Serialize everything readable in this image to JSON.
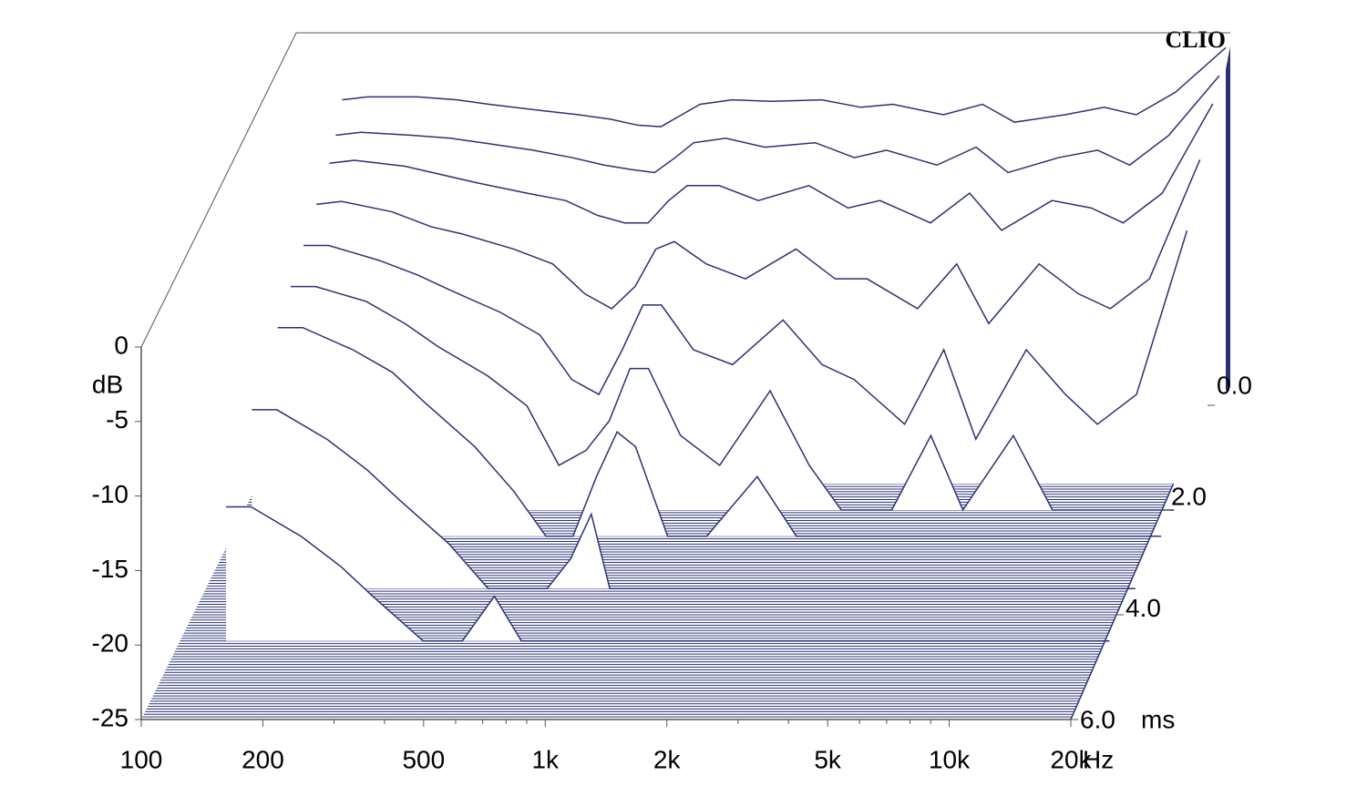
{
  "chart_data": {
    "type": "waterfall",
    "brand": "CLIO",
    "x_unit": "Hz",
    "y_label": "dB",
    "z_unit": "ms",
    "color": "#2b3273",
    "xlim": [
      100,
      20000
    ],
    "xticks": [
      {
        "value": 100,
        "label": "100"
      },
      {
        "value": 200,
        "label": "200"
      },
      {
        "value": 500,
        "label": "500"
      },
      {
        "value": 1000,
        "label": "1k"
      },
      {
        "value": 2000,
        "label": "2k"
      },
      {
        "value": 5000,
        "label": "5k"
      },
      {
        "value": 10000,
        "label": "10k"
      },
      {
        "value": 20000,
        "label": "20k"
      }
    ],
    "xminorticks": [
      300,
      400,
      600,
      700,
      800,
      900,
      3000,
      4000,
      6000,
      7000,
      8000,
      9000
    ],
    "log_x": true,
    "ylim": [
      -25,
      0
    ],
    "yticks": [
      0,
      -5,
      -10,
      -15,
      -20,
      -25
    ],
    "zlim": [
      6,
      0
    ],
    "zticks": [
      {
        "value": 0,
        "label": "0.0"
      },
      {
        "value": 2,
        "label": "2.0"
      },
      {
        "value": 4,
        "label": "4.0"
      },
      {
        "value": 6,
        "label": "6.0"
      }
    ],
    "x": [
      130,
      150,
      200,
      250,
      300,
      400,
      500,
      600,
      700,
      800,
      900,
      1000,
      1200,
      1500,
      2000,
      2500,
      3000,
      4000,
      5000,
      6000,
      8000,
      10000,
      12000,
      15000,
      20000
    ],
    "slices": [
      {
        "t": 0,
        "values": [
          -4.5,
          -4.3,
          -4.3,
          -4.5,
          -4.8,
          -5.2,
          -5.5,
          -5.8,
          -6.2,
          -6.3,
          -5.5,
          -4.8,
          -4.5,
          -4.6,
          -4.5,
          -5,
          -4.8,
          -5.5,
          -4.8,
          -6,
          -5.5,
          -5,
          -5.5,
          -4,
          -1
        ]
      },
      {
        "t": 0.25,
        "values": [
          -6,
          -5.8,
          -6,
          -6.2,
          -6.5,
          -7,
          -7.5,
          -8,
          -8.3,
          -8.5,
          -7.5,
          -6.5,
          -6.2,
          -6.8,
          -6.5,
          -7.5,
          -7,
          -8,
          -6.8,
          -8.5,
          -7.5,
          -7,
          -8,
          -6,
          -2
        ]
      },
      {
        "t": 0.5,
        "values": [
          -7,
          -6.8,
          -7.2,
          -7.8,
          -8.3,
          -9,
          -9.5,
          -10.5,
          -11,
          -11,
          -9.5,
          -8.5,
          -8.5,
          -9.5,
          -8.5,
          -10,
          -9.5,
          -11,
          -9,
          -11.5,
          -9.5,
          -10,
          -11,
          -9,
          -3
        ]
      },
      {
        "t": 1,
        "values": [
          -8,
          -7.8,
          -8.5,
          -9.5,
          -10,
          -11,
          -12,
          -14,
          -15,
          -13.5,
          -11,
          -10.5,
          -12,
          -13,
          -11,
          -13,
          -13,
          -15,
          -12,
          -16,
          -12,
          -14,
          -15,
          -13,
          -5
        ]
      },
      {
        "t": 1.5,
        "values": [
          -9,
          -9,
          -10,
          -11,
          -12,
          -13.5,
          -15,
          -18,
          -19,
          -16,
          -13,
          -13,
          -16,
          -17,
          -14,
          -17,
          -18,
          -21,
          -16,
          -22,
          -16,
          -19,
          -21,
          -19,
          -8
        ]
      },
      {
        "t": 2,
        "values": [
          -10,
          -10,
          -11,
          -12.5,
          -14,
          -16,
          -18,
          -22,
          -21,
          -19,
          -15.5,
          -15.5,
          -20,
          -22,
          -17,
          -22,
          -25,
          -25,
          -20,
          -25,
          -20,
          -25,
          -25,
          -25,
          -25
        ]
      },
      {
        "t": 2.5,
        "values": [
          -11,
          -11,
          -12.5,
          -14,
          -16,
          -19,
          -22,
          -25,
          -25,
          -21,
          -18,
          -19,
          -25,
          -25,
          -21,
          -25,
          -25,
          -25,
          -25,
          -25,
          -25,
          -25,
          -25,
          -25,
          -25
        ]
      },
      {
        "t": 3.5,
        "values": [
          -13,
          -13,
          -15,
          -17,
          -19,
          -22,
          -25,
          -25,
          -25,
          -23,
          -20,
          -25,
          -25,
          -25,
          -25,
          -25,
          -25,
          -25,
          -25,
          -25,
          -25,
          -25,
          -25,
          -25,
          -25
        ]
      },
      {
        "t": 4.5,
        "values": [
          -16,
          -16,
          -18,
          -20,
          -22,
          -25,
          -25,
          -22,
          -25,
          -25,
          -25,
          -25,
          -25,
          -25,
          -25,
          -25,
          -25,
          -25,
          -25,
          -25,
          -25,
          -25,
          -25,
          -25,
          -25
        ]
      }
    ]
  }
}
